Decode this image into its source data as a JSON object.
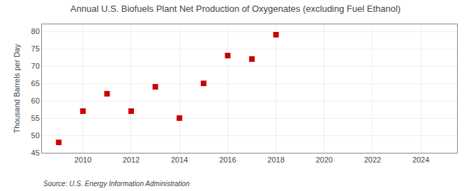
{
  "chart_data": {
    "type": "scatter",
    "title": "Annual U.S. Biofuels Plant Net Production of Oxygenates (excluding Fuel Ethanol)",
    "ylabel": "Thousand Barrels per Day",
    "annotations": [
      "Source: U.S. Energy Information Administration"
    ],
    "x": [
      2009,
      2010,
      2011,
      2012,
      2013,
      2014,
      2015,
      2016,
      2017,
      2018
    ],
    "values": [
      48.0,
      57.0,
      62.0,
      57.0,
      64.0,
      55.0,
      65.0,
      73.0,
      72.0,
      79.0
    ],
    "xlim": [
      2008.3,
      2025.5
    ],
    "ylim": [
      45,
      82
    ],
    "xticks": [
      2010,
      2012,
      2014,
      2016,
      2018,
      2020,
      2022,
      2024
    ],
    "yticks": [
      45,
      50,
      55,
      60,
      65,
      70,
      75,
      80
    ],
    "color": "#cc0000",
    "marker": "square",
    "grid": true
  }
}
